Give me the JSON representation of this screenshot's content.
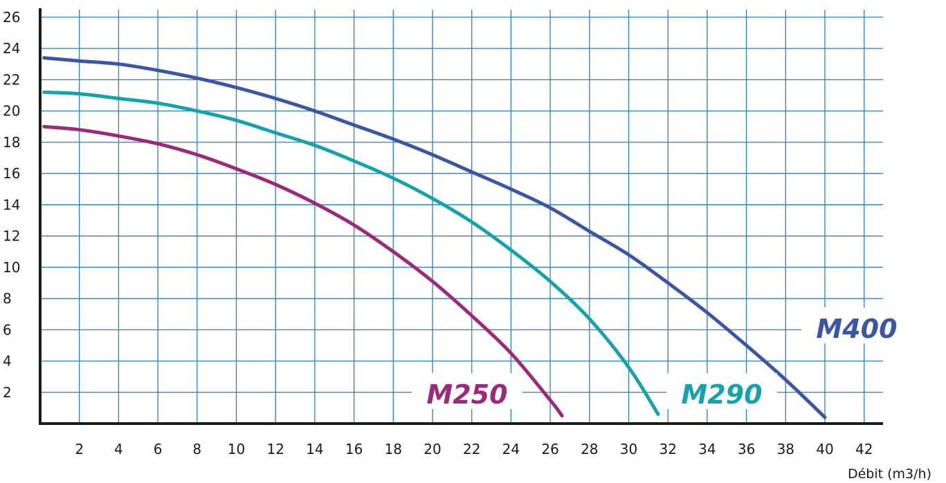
{
  "chart_data": {
    "type": "line",
    "title": "",
    "xlabel": "Débit (m3/h)",
    "ylabel": "",
    "xlim": [
      0,
      43
    ],
    "ylim": [
      0,
      26
    ],
    "x_ticks": [
      2,
      4,
      6,
      8,
      10,
      12,
      14,
      16,
      18,
      20,
      22,
      24,
      26,
      28,
      30,
      32,
      34,
      36,
      38,
      40,
      42
    ],
    "y_ticks": [
      2,
      4,
      6,
      8,
      10,
      12,
      14,
      16,
      18,
      20,
      22,
      24,
      26
    ],
    "grid": true,
    "legend": "inline labels near curve ends",
    "series": [
      {
        "name": "M250",
        "color": "#9b2b7a",
        "x": [
          0.2,
          2,
          4,
          6,
          8,
          10,
          12,
          14,
          16,
          18,
          20,
          22,
          24,
          26,
          26.6
        ],
        "y": [
          19.0,
          18.8,
          18.4,
          17.9,
          17.2,
          16.3,
          15.3,
          14.1,
          12.7,
          11.0,
          9.1,
          6.9,
          4.5,
          1.5,
          0.5
        ]
      },
      {
        "name": "M290",
        "color": "#14a3ad",
        "x": [
          0.2,
          2,
          4,
          6,
          8,
          10,
          12,
          14,
          16,
          18,
          20,
          22,
          24,
          26,
          28,
          30,
          31.5
        ],
        "y": [
          21.2,
          21.1,
          20.8,
          20.5,
          20.0,
          19.4,
          18.6,
          17.8,
          16.8,
          15.7,
          14.4,
          12.9,
          11.1,
          9.1,
          6.7,
          3.6,
          0.6
        ]
      },
      {
        "name": "M400",
        "color": "#3b57a3",
        "x": [
          0.2,
          2,
          4,
          6,
          8,
          10,
          12,
          14,
          16,
          18,
          20,
          22,
          24,
          26,
          28,
          30,
          32,
          34,
          36,
          38,
          40
        ],
        "y": [
          23.4,
          23.2,
          23.0,
          22.6,
          22.1,
          21.5,
          20.8,
          20.0,
          19.1,
          18.2,
          17.2,
          16.1,
          15.0,
          13.8,
          12.3,
          10.8,
          9.0,
          7.1,
          5.0,
          2.8,
          0.4
        ]
      }
    ]
  }
}
